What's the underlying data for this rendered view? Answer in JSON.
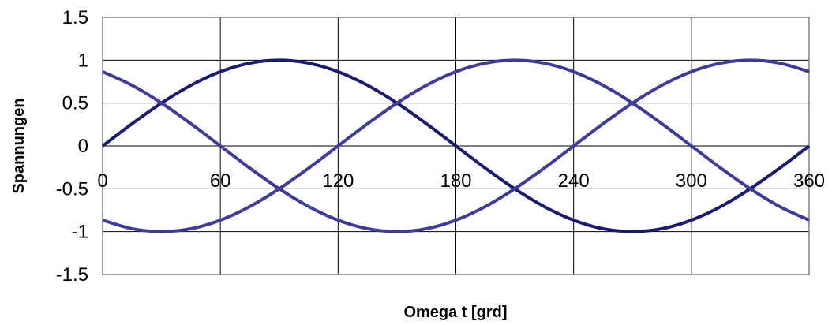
{
  "chart_data": {
    "type": "line",
    "title": "",
    "xlabel": "Omega t [grd]",
    "ylabel": "Spannungen",
    "xlim": [
      0,
      360
    ],
    "ylim": [
      -1.5,
      1.5
    ],
    "x_ticks": [
      0,
      60,
      120,
      180,
      240,
      300,
      360
    ],
    "y_ticks": [
      1.5,
      1,
      0.5,
      0,
      -0.5,
      -1,
      -1.5
    ],
    "x_tick_labels": [
      "0",
      "60",
      "120",
      "180",
      "240",
      "300",
      "360"
    ],
    "y_tick_labels": [
      "1.5",
      "1",
      "0.5",
      "0",
      "-0.5",
      "-1",
      "-1.5"
    ],
    "grid": true,
    "legend": "none",
    "x": [
      0,
      15,
      30,
      45,
      60,
      75,
      90,
      105,
      120,
      135,
      150,
      165,
      180,
      195,
      210,
      225,
      240,
      255,
      270,
      285,
      300,
      315,
      330,
      345,
      360
    ],
    "series": [
      {
        "values": [
          0,
          0.259,
          0.5,
          0.707,
          0.866,
          0.966,
          1,
          0.966,
          0.866,
          0.707,
          0.5,
          0.259,
          0,
          -0.259,
          -0.5,
          -0.707,
          -0.866,
          -0.966,
          -1,
          -0.966,
          -0.866,
          -0.707,
          -0.5,
          -0.259,
          0
        ],
        "color": "#1a1a6e"
      },
      {
        "values": [
          -0.866,
          -0.966,
          -1,
          -0.966,
          -0.866,
          -0.707,
          -0.5,
          -0.259,
          0,
          0.259,
          0.5,
          0.707,
          0.866,
          0.966,
          1,
          0.966,
          0.866,
          0.707,
          0.5,
          0.259,
          0,
          -0.259,
          -0.5,
          -0.707,
          -0.866
        ],
        "color": "#3e3c96"
      },
      {
        "values": [
          0.866,
          0.707,
          0.5,
          0.259,
          0,
          -0.259,
          -0.5,
          -0.707,
          -0.866,
          -0.966,
          -1,
          -0.966,
          -0.866,
          -0.707,
          -0.5,
          -0.259,
          0,
          0.259,
          0.5,
          0.707,
          0.866,
          0.966,
          1,
          0.966,
          0.866
        ],
        "color": "#3e3c96"
      }
    ]
  }
}
